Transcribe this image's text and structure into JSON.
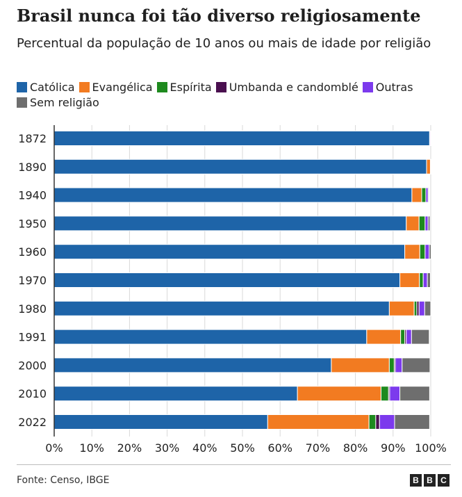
{
  "header": {
    "title": "Brasil nunca foi tão diverso religiosamente",
    "subtitle": "Percentual da população de 10 anos ou mais de idade por religião"
  },
  "footer": {
    "source": "Fonte: Censo, IBGE",
    "logo_letters": [
      "B",
      "B",
      "C"
    ]
  },
  "chart_data": {
    "type": "bar",
    "orientation": "horizontal",
    "stacked": true,
    "title": "Brasil nunca foi tão diverso religiosamente",
    "subtitle": "Percentual da população de 10 anos ou mais de idade por religião",
    "categories": [
      "1872",
      "1890",
      "1940",
      "1950",
      "1960",
      "1970",
      "1980",
      "1991",
      "2000",
      "2010",
      "2022"
    ],
    "series": [
      {
        "name": "Católica",
        "color": "#1e64a8",
        "values": [
          99.7,
          98.9,
          95.0,
          93.5,
          93.1,
          91.8,
          89.0,
          83.0,
          73.6,
          64.6,
          56.7
        ]
      },
      {
        "name": "Evangélica",
        "color": "#f27b21",
        "values": [
          0.1,
          1.0,
          2.6,
          3.4,
          4.0,
          5.2,
          6.6,
          9.0,
          15.4,
          22.2,
          26.9
        ]
      },
      {
        "name": "Espírita",
        "color": "#1e8a1e",
        "values": [
          0,
          0,
          1.1,
          1.6,
          1.4,
          1.0,
          0.7,
          1.1,
          1.3,
          2.0,
          1.8
        ]
      },
      {
        "name": "Umbanda e candomblé",
        "color": "#4a0f4f",
        "values": [
          0,
          0,
          0,
          0,
          0,
          0,
          0.6,
          0.4,
          0.3,
          0.3,
          1.0
        ]
      },
      {
        "name": "Outras",
        "color": "#7c3aed",
        "values": [
          0.2,
          0.1,
          0.6,
          0.8,
          1.1,
          1.1,
          1.5,
          1.4,
          1.8,
          2.7,
          4.0
        ]
      },
      {
        "name": "Sem religião",
        "color": "#6e6e6e",
        "values": [
          0,
          0,
          0.2,
          0.5,
          0.5,
          0.8,
          1.6,
          4.7,
          7.4,
          7.9,
          9.3
        ]
      }
    ],
    "xlim": [
      0,
      100
    ],
    "xticks": [
      "0%",
      "10%",
      "20%",
      "30%",
      "40%",
      "50%",
      "60%",
      "70%",
      "80%",
      "90%",
      "100%"
    ],
    "grid": true,
    "legend": "top"
  }
}
